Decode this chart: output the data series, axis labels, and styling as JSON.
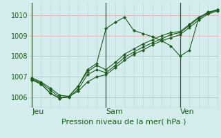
{
  "title": "Pression niveau de la mer( hPa )",
  "background_color": "#d4ecec",
  "grid_color_h": "#e0b8b8",
  "grid_color_v": "#b8d8d8",
  "line_color": "#1a5c1a",
  "vline_color": "#2a5c2a",
  "ylim": [
    1005.5,
    1010.6
  ],
  "yticks": [
    1006,
    1007,
    1008,
    1009,
    1010
  ],
  "day_labels": [
    "Jeu",
    "Sam",
    "Ven"
  ],
  "day_positions": [
    0,
    48,
    96
  ],
  "xlabel_fontsize": 8,
  "ytick_fontsize": 7,
  "title_fontsize": 8,
  "xlim": [
    -2,
    121
  ],
  "lines": [
    {
      "x": [
        0,
        6,
        12,
        18,
        24,
        30,
        36,
        42,
        48,
        54,
        60,
        66,
        72,
        78,
        84,
        90,
        96,
        102,
        108,
        114,
        120
      ],
      "y": [
        1006.95,
        1006.75,
        1006.45,
        1006.1,
        1006.05,
        1006.3,
        1006.75,
        1007.0,
        1007.1,
        1007.45,
        1007.8,
        1008.1,
        1008.3,
        1008.55,
        1008.75,
        1008.9,
        1009.05,
        1009.4,
        1009.75,
        1010.05,
        1010.2
      ]
    },
    {
      "x": [
        0,
        6,
        12,
        18,
        24,
        30,
        36,
        42,
        48,
        54,
        60,
        66,
        72,
        78,
        84,
        90,
        96,
        102,
        108,
        114,
        120
      ],
      "y": [
        1006.9,
        1006.7,
        1006.35,
        1006.0,
        1006.0,
        1006.4,
        1007.1,
        1007.35,
        1007.2,
        1007.55,
        1007.95,
        1008.2,
        1008.45,
        1008.65,
        1008.85,
        1009.05,
        1009.15,
        1009.5,
        1009.85,
        1010.1,
        1010.25
      ]
    },
    {
      "x": [
        0,
        6,
        12,
        18,
        24,
        30,
        36,
        42,
        48,
        54,
        60,
        66,
        72,
        78,
        84,
        90,
        96,
        102,
        108,
        114,
        120
      ],
      "y": [
        1006.85,
        1006.65,
        1006.2,
        1005.95,
        1006.05,
        1006.55,
        1007.25,
        1007.55,
        1007.35,
        1007.7,
        1008.1,
        1008.35,
        1008.6,
        1008.8,
        1009.0,
        1009.15,
        1009.2,
        1009.55,
        1009.9,
        1010.1,
        1010.25
      ]
    },
    {
      "x": [
        0,
        6,
        12,
        18,
        24,
        30,
        36,
        42,
        48,
        54,
        60,
        66,
        72,
        78,
        84,
        90,
        96,
        102,
        108,
        114,
        120
      ],
      "y": [
        1006.85,
        1006.65,
        1006.2,
        1005.95,
        1006.05,
        1006.55,
        1007.35,
        1007.65,
        1009.35,
        1009.65,
        1009.9,
        1009.25,
        1009.1,
        1008.95,
        1008.75,
        1008.5,
        1008.0,
        1008.3,
        1009.85,
        1010.15,
        1010.25
      ]
    }
  ]
}
